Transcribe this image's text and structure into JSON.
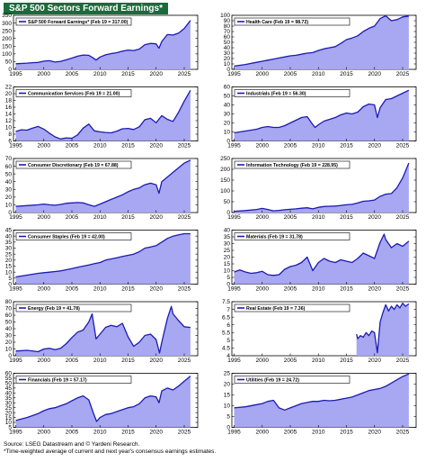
{
  "title": "S&P 500 Sectors Forward Earnings*",
  "footer": {
    "source": "Source: LSEG Datastream and © Yardeni Research.",
    "note": "*Time-weighted average of current and next year's consensus earnings estimates."
  },
  "colors": {
    "line": "#1b1bb3",
    "fill": "#a7a7f2",
    "title_bg": "#1a6b3c"
  },
  "chart_data": [
    {
      "type": "area",
      "legend": "S&P 500 Forward Earnings* (Feb 19 = 317.00)",
      "x_ticks": [
        1995,
        2000,
        2005,
        2010,
        2015,
        2020,
        2025
      ],
      "y_ticks": [
        0,
        50,
        100,
        150,
        200,
        250,
        300,
        350
      ],
      "ylim": [
        0,
        350
      ],
      "x": [
        1995,
        1997,
        1998,
        1999,
        2000,
        2001,
        2002,
        2003,
        2004,
        2005,
        2006,
        2007,
        2008,
        2008.8,
        2009.3,
        2010,
        2011,
        2012,
        2013,
        2014,
        2015,
        2016,
        2017,
        2018,
        2019,
        2020,
        2020.5,
        2021,
        2022,
        2023,
        2024,
        2025,
        2026.1
      ],
      "values": [
        36,
        40,
        43,
        45,
        53,
        56,
        47,
        52,
        62,
        73,
        85,
        93,
        91,
        74,
        60,
        80,
        94,
        102,
        108,
        118,
        125,
        122,
        131,
        160,
        168,
        165,
        137,
        180,
        225,
        222,
        235,
        265,
        317
      ]
    },
    {
      "type": "area",
      "legend": "Health Care (Feb 19 = 98.72)",
      "x_ticks": [
        1995,
        2000,
        2005,
        2010,
        2015,
        2020,
        2025
      ],
      "y_ticks": [
        0,
        10,
        20,
        30,
        40,
        50,
        60,
        70,
        80,
        90,
        100
      ],
      "ylim": [
        0,
        100
      ],
      "x": [
        1995,
        1997,
        1999,
        2000,
        2001,
        2002,
        2003,
        2004,
        2005,
        2006,
        2007,
        2008,
        2009,
        2010,
        2011,
        2012,
        2013,
        2014,
        2015,
        2016,
        2017,
        2018,
        2019,
        2020,
        2021,
        2022,
        2023,
        2024,
        2025,
        2026.1
      ],
      "values": [
        6,
        9,
        13,
        15,
        17,
        19,
        21,
        23,
        25,
        26,
        28,
        30,
        31,
        35,
        38,
        40,
        42,
        48,
        55,
        58,
        62,
        70,
        76,
        80,
        94,
        99,
        90,
        92,
        97,
        98.7
      ]
    },
    {
      "type": "area",
      "legend": "Communication Services (Feb 19 = 21.00)",
      "x_ticks": [
        1995,
        2000,
        2005,
        2010,
        2015,
        2020,
        2025
      ],
      "y_ticks": [
        6,
        8,
        10,
        12,
        14,
        16,
        18,
        20,
        22
      ],
      "ylim": [
        6,
        22
      ],
      "x": [
        1995,
        1996,
        1997,
        1998,
        1999,
        2000,
        2001,
        2002,
        2003,
        2004,
        2005,
        2006,
        2007,
        2008,
        2009,
        2010,
        2011,
        2012,
        2013,
        2014,
        2015,
        2016,
        2017,
        2018,
        2019,
        2020,
        2021,
        2022,
        2023,
        2024,
        2025,
        2026.1
      ],
      "values": [
        8.8,
        9.3,
        9.2,
        9.8,
        10.3,
        9.5,
        8.3,
        7.2,
        6.6,
        6.9,
        6.8,
        7.8,
        9.8,
        11,
        9,
        8.7,
        8.5,
        8.4,
        8.9,
        9.6,
        9.7,
        9.4,
        10.2,
        12.3,
        12.7,
        11.4,
        13.5,
        12.4,
        11.8,
        14.5,
        17.8,
        21
      ]
    },
    {
      "type": "area",
      "legend": "Industrials (Feb 19 = 56.30)",
      "x_ticks": [
        1995,
        2000,
        2005,
        2010,
        2015,
        2020,
        2025
      ],
      "y_ticks": [
        0,
        10,
        20,
        30,
        40,
        50,
        60
      ],
      "ylim": [
        0,
        60
      ],
      "x": [
        1995,
        1997,
        1999,
        2000,
        2001,
        2002,
        2003,
        2004,
        2005,
        2006,
        2007,
        2008,
        2008.8,
        2009.4,
        2010,
        2011,
        2012,
        2013,
        2014,
        2015,
        2016,
        2017,
        2018,
        2019,
        2020,
        2020.5,
        2021,
        2022,
        2023,
        2024,
        2025,
        2026.1
      ],
      "values": [
        9,
        11,
        13,
        15,
        16,
        15,
        15,
        17,
        20,
        23,
        26,
        27,
        20,
        15,
        18,
        22,
        24,
        26,
        29,
        31,
        30,
        32,
        38,
        41,
        40,
        26,
        37,
        46,
        47,
        50,
        53,
        56.3
      ]
    },
    {
      "type": "area",
      "legend": "Consumer Discretionary (Feb 19 = 67.88)",
      "x_ticks": [
        1995,
        2000,
        2005,
        2010,
        2015,
        2020,
        2025
      ],
      "y_ticks": [
        0,
        10,
        20,
        30,
        40,
        50,
        60,
        70
      ],
      "ylim": [
        0,
        70
      ],
      "x": [
        1995,
        1997,
        1999,
        2000,
        2001,
        2002,
        2003,
        2004,
        2005,
        2006,
        2007,
        2008,
        2009,
        2010,
        2011,
        2012,
        2013,
        2014,
        2015,
        2016,
        2017,
        2018,
        2019,
        2020,
        2020.5,
        2021,
        2022,
        2023,
        2024,
        2025,
        2026.1
      ],
      "values": [
        8,
        9,
        10,
        11,
        10,
        9.5,
        10.5,
        12,
        12.5,
        13,
        12.5,
        10,
        8,
        11,
        14,
        17,
        20,
        23,
        27,
        30,
        32,
        36,
        38,
        36,
        25,
        40,
        46,
        52,
        58,
        64,
        67.9
      ]
    },
    {
      "type": "area",
      "legend": "Information Technology (Feb 19 = 228.95)",
      "x_ticks": [
        1995,
        2000,
        2005,
        2010,
        2015,
        2020,
        2025
      ],
      "y_ticks": [
        0,
        50,
        100,
        150,
        200,
        250
      ],
      "ylim": [
        0,
        250
      ],
      "x": [
        1995,
        1997,
        1999,
        2000,
        2001,
        2002,
        2003,
        2004,
        2005,
        2006,
        2007,
        2008,
        2009,
        2010,
        2011,
        2012,
        2013,
        2014,
        2015,
        2016,
        2017,
        2018,
        2019,
        2020,
        2021,
        2022,
        2023,
        2024,
        2025,
        2026.1
      ],
      "values": [
        6,
        9,
        14,
        19,
        14,
        8,
        10,
        13,
        15,
        17,
        20,
        22,
        17,
        24,
        28,
        29,
        30,
        33,
        36,
        38,
        44,
        52,
        54,
        58,
        75,
        85,
        88,
        115,
        160,
        229
      ]
    },
    {
      "type": "area",
      "legend": "Consumer Staples (Feb 19 = 42.00)",
      "x_ticks": [
        1995,
        2000,
        2005,
        2010,
        2015,
        2020,
        2025
      ],
      "y_ticks": [
        0,
        5,
        10,
        15,
        20,
        25,
        30,
        35,
        40,
        45
      ],
      "ylim": [
        0,
        45
      ],
      "x": [
        1995,
        1997,
        1999,
        2000,
        2001,
        2002,
        2003,
        2004,
        2005,
        2006,
        2007,
        2008,
        2009,
        2010,
        2011,
        2012,
        2013,
        2014,
        2015,
        2016,
        2017,
        2018,
        2019,
        2020,
        2021,
        2022,
        2023,
        2024,
        2025,
        2026.1
      ],
      "values": [
        6,
        7.5,
        9,
        9.5,
        10,
        10.5,
        11,
        12,
        13,
        14,
        15,
        16,
        17,
        18,
        20,
        21,
        22,
        23,
        24,
        25,
        27,
        30,
        31,
        32,
        35,
        38,
        40,
        41,
        42,
        42
      ]
    },
    {
      "type": "area",
      "legend": "Materials (Feb 19 = 31.78)",
      "x_ticks": [
        1995,
        2000,
        2005,
        2010,
        2015,
        2020,
        2025
      ],
      "y_ticks": [
        0,
        5,
        10,
        15,
        20,
        25,
        30,
        35,
        40
      ],
      "ylim": [
        0,
        40
      ],
      "x": [
        1995,
        1996,
        1997,
        1998,
        1999,
        2000,
        2001,
        2002,
        2003,
        2004,
        2005,
        2006,
        2007,
        2008,
        2009,
        2010,
        2011,
        2012,
        2013,
        2014,
        2015,
        2016,
        2017,
        2018,
        2019,
        2020,
        2021,
        2021.7,
        2022,
        2023,
        2024,
        2025,
        2026.1
      ],
      "values": [
        9,
        10.5,
        9,
        8,
        8.5,
        9.5,
        7,
        6.5,
        7,
        11,
        13,
        14,
        16,
        20,
        10,
        16,
        19,
        17,
        16,
        18,
        17,
        16,
        19,
        23,
        21,
        19,
        31,
        37,
        33,
        27,
        30,
        28,
        31.8
      ]
    },
    {
      "type": "area",
      "legend": "Energy (Feb 19 = 41.78)",
      "x_ticks": [
        1995,
        2000,
        2005,
        2010,
        2015,
        2020,
        2025
      ],
      "y_ticks": [
        0,
        10,
        20,
        30,
        40,
        50,
        60,
        70,
        80
      ],
      "ylim": [
        0,
        80
      ],
      "x": [
        1995,
        1997,
        1999,
        2000,
        2001,
        2002,
        2003,
        2004,
        2005,
        2006,
        2007,
        2008,
        2008.6,
        2009.3,
        2010,
        2011,
        2012,
        2013,
        2014,
        2015,
        2016,
        2017,
        2018,
        2019,
        2020,
        2020.6,
        2021,
        2022,
        2022.7,
        2023,
        2024,
        2025,
        2026.1
      ],
      "values": [
        7,
        8,
        6,
        10,
        11,
        9,
        11,
        18,
        27,
        35,
        38,
        50,
        62,
        25,
        32,
        42,
        45,
        43,
        48,
        28,
        14,
        20,
        30,
        32,
        24,
        4,
        20,
        55,
        73,
        62,
        52,
        43,
        41.8
      ]
    },
    {
      "type": "area",
      "legend": "Real Estate (Feb 19 = 7.36)",
      "x_ticks": [
        1995,
        2000,
        2005,
        2010,
        2015,
        2020,
        2025
      ],
      "y_ticks": [
        4,
        4.5,
        5,
        5.5,
        6,
        6.5,
        7,
        7.5
      ],
      "ylim": [
        4,
        7.5
      ],
      "x": [
        2016.8,
        2017,
        2017.5,
        2018,
        2018.5,
        2019,
        2019.5,
        2020,
        2020.5,
        2021,
        2021.5,
        2022,
        2022.5,
        2023,
        2023.5,
        2024,
        2024.5,
        2025,
        2025.5,
        2026.1
      ],
      "values": [
        5.4,
        5.1,
        5.3,
        5.2,
        5.5,
        5.3,
        5.6,
        5.5,
        4.2,
        6.2,
        6.8,
        7.3,
        6.9,
        7.2,
        7,
        7.3,
        7.1,
        7.4,
        7.2,
        7.36
      ]
    },
    {
      "type": "area",
      "legend": "Financials (Feb 19 = 57.17)",
      "x_ticks": [
        1995,
        2000,
        2005,
        2010,
        2015,
        2020,
        2025
      ],
      "y_ticks": [
        5,
        10,
        15,
        20,
        25,
        30,
        35,
        40,
        45,
        50,
        55,
        60
      ],
      "ylim": [
        5,
        60
      ],
      "x": [
        1995,
        1997,
        1999,
        2000,
        2001,
        2002,
        2003,
        2004,
        2005,
        2006,
        2007,
        2008,
        2008.8,
        2009.4,
        2010,
        2011,
        2012,
        2013,
        2014,
        2015,
        2016,
        2017,
        2018,
        2019,
        2020,
        2020.5,
        2021,
        2022,
        2023,
        2024,
        2025,
        2026.1
      ],
      "values": [
        12,
        15,
        19,
        22,
        24,
        25,
        27,
        29,
        32,
        35,
        37,
        33,
        20,
        11,
        15,
        18,
        19,
        21,
        23,
        25,
        26,
        29,
        35,
        37,
        36,
        30,
        42,
        45,
        43,
        47,
        52,
        57.2
      ]
    },
    {
      "type": "area",
      "legend": "Utilities (Feb 19 = 24.72)",
      "x_ticks": [
        1995,
        2000,
        2005,
        2010,
        2015,
        2020,
        2025
      ],
      "y_ticks": [
        0,
        5,
        10,
        15,
        20,
        25
      ],
      "ylim": [
        0,
        25
      ],
      "x": [
        1995,
        1997,
        1999,
        2000,
        2001,
        2002,
        2003,
        2004,
        2005,
        2006,
        2007,
        2008,
        2009,
        2010,
        2011,
        2012,
        2013,
        2014,
        2015,
        2016,
        2017,
        2018,
        2019,
        2020,
        2021,
        2022,
        2023,
        2024,
        2025,
        2026.1
      ],
      "values": [
        9,
        9.5,
        10.5,
        11,
        12,
        12.5,
        9,
        8,
        9,
        10,
        11,
        11.5,
        12,
        12,
        12.5,
        12.3,
        12.5,
        13,
        13.5,
        14,
        15,
        16,
        17,
        17.5,
        18,
        19,
        20.5,
        22,
        23.5,
        24.7
      ]
    }
  ]
}
